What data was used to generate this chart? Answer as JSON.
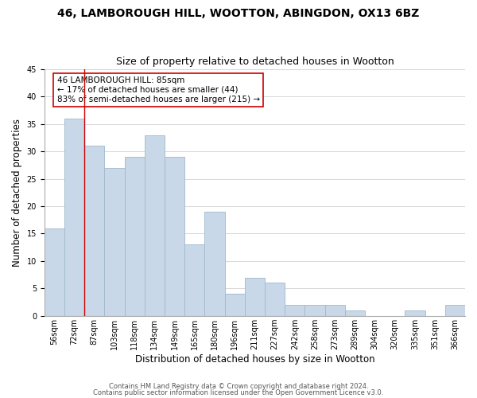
{
  "title1": "46, LAMBOROUGH HILL, WOOTTON, ABINGDON, OX13 6BZ",
  "title2": "Size of property relative to detached houses in Wootton",
  "xlabel": "Distribution of detached houses by size in Wootton",
  "ylabel": "Number of detached properties",
  "footnote1": "Contains HM Land Registry data © Crown copyright and database right 2024.",
  "footnote2": "Contains public sector information licensed under the Open Government Licence v3.0.",
  "bar_labels": [
    "56sqm",
    "72sqm",
    "87sqm",
    "103sqm",
    "118sqm",
    "134sqm",
    "149sqm",
    "165sqm",
    "180sqm",
    "196sqm",
    "211sqm",
    "227sqm",
    "242sqm",
    "258sqm",
    "273sqm",
    "289sqm",
    "304sqm",
    "320sqm",
    "335sqm",
    "351sqm",
    "366sqm"
  ],
  "bar_heights": [
    16,
    36,
    31,
    27,
    29,
    33,
    29,
    13,
    19,
    4,
    7,
    6,
    2,
    2,
    2,
    1,
    0,
    0,
    1,
    0,
    2
  ],
  "bar_color": "#c8d8e8",
  "bar_edge_color": "#a0b8cc",
  "grid_color": "#d8d8d8",
  "marker_line_color": "#cc0000",
  "marker_line_index": 2,
  "annotation_title": "46 LAMBOROUGH HILL: 85sqm",
  "annotation_line1": "← 17% of detached houses are smaller (44)",
  "annotation_line2": "83% of semi-detached houses are larger (215) →",
  "annotation_box_edgecolor": "#cc0000",
  "annotation_box_facecolor": "#ffffff",
  "ylim": [
    0,
    45
  ],
  "yticks": [
    0,
    5,
    10,
    15,
    20,
    25,
    30,
    35,
    40,
    45
  ],
  "background_color": "#ffffff",
  "title1_fontsize": 10,
  "title2_fontsize": 9,
  "xlabel_fontsize": 8.5,
  "ylabel_fontsize": 8.5,
  "tick_fontsize": 7,
  "annotation_fontsize": 7.5,
  "footnote_fontsize": 6
}
